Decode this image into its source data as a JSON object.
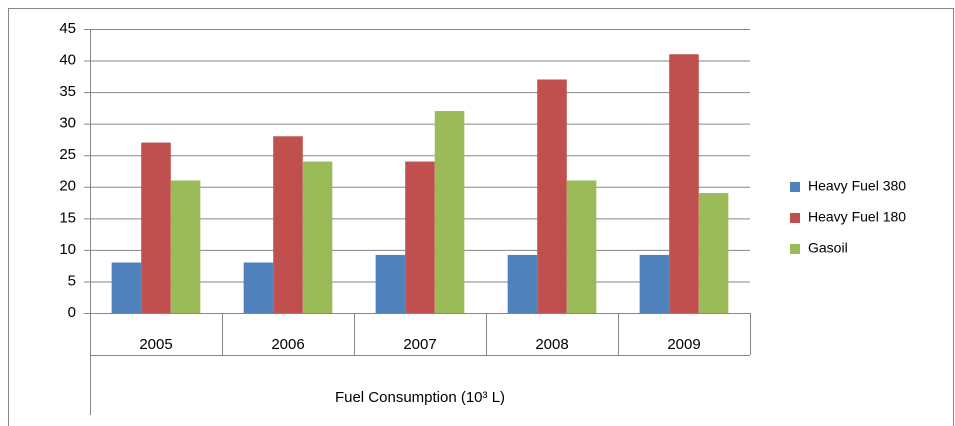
{
  "chart_data": {
    "type": "bar",
    "categories": [
      "2005",
      "2006",
      "2007",
      "2008",
      "2009"
    ],
    "series": [
      {
        "name": "Heavy Fuel 380",
        "color": "#4f81bd",
        "values": [
          8,
          8,
          9.2,
          9.2,
          9.2
        ]
      },
      {
        "name": "Heavy Fuel 180",
        "color": "#c0504d",
        "values": [
          27,
          28,
          24,
          37,
          41
        ]
      },
      {
        "name": "Gasoil",
        "color": "#9bbb59",
        "values": [
          21,
          24,
          32,
          21,
          19
        ]
      }
    ],
    "x_axis_label": "Fuel Consumption (10³ L)",
    "ylim": [
      0,
      45
    ],
    "yticks": [
      0,
      5,
      10,
      15,
      20,
      25,
      30,
      35,
      40,
      45
    ],
    "grid": true,
    "legend": "right"
  }
}
